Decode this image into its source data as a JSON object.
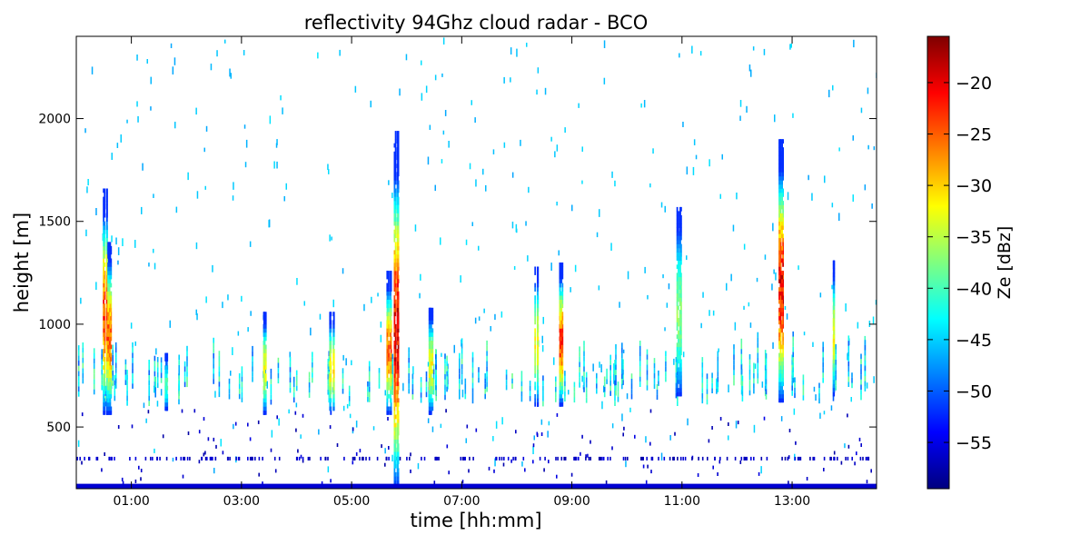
{
  "chart_data": {
    "type": "heatmap",
    "title": "reflectivity 94Ghz cloud radar - BCO",
    "xlabel": "time [hh:mm]",
    "ylabel": "height [m]",
    "xlim": [
      "00:00",
      "14:32"
    ],
    "ylim": [
      200,
      2400
    ],
    "x_ticks": [
      "01:00",
      "03:00",
      "05:00",
      "07:00",
      "09:00",
      "11:00",
      "13:00"
    ],
    "y_ticks": [
      500,
      1000,
      1500,
      2000
    ],
    "colorbar": {
      "label": "Ze [dBz]",
      "range": [
        -59.5,
        -15.5
      ],
      "ticks": [
        -55,
        -50,
        -45,
        -40,
        -35,
        -30,
        -25,
        -20
      ],
      "tick_labels": [
        "−55",
        "−50",
        "−45",
        "−40",
        "−35",
        "−30",
        "−25",
        "−20"
      ],
      "colormap": "jet"
    },
    "surface_clutter_height": 215,
    "cloud_columns": [
      {
        "time": "00:31",
        "base": 560,
        "top": 1660,
        "peak_dbz": -20
      },
      {
        "time": "00:36",
        "base": 560,
        "top": 1400,
        "peak_dbz": -22
      },
      {
        "time": "01:38",
        "base": 580,
        "top": 850,
        "peak_dbz": -38
      },
      {
        "time": "03:25",
        "base": 560,
        "top": 1050,
        "peak_dbz": -30
      },
      {
        "time": "04:38",
        "base": 560,
        "top": 1050,
        "peak_dbz": -28
      },
      {
        "time": "05:40",
        "base": 560,
        "top": 1250,
        "peak_dbz": -22
      },
      {
        "time": "05:48",
        "base": 200,
        "top": 1930,
        "peak_dbz": -16
      },
      {
        "time": "06:25",
        "base": 560,
        "top": 1080,
        "peak_dbz": -30
      },
      {
        "time": "08:20",
        "base": 600,
        "top": 1280,
        "peak_dbz": -30
      },
      {
        "time": "08:48",
        "base": 600,
        "top": 1300,
        "peak_dbz": -20
      },
      {
        "time": "10:56",
        "base": 650,
        "top": 1560,
        "peak_dbz": -35
      },
      {
        "time": "12:47",
        "base": 620,
        "top": 1900,
        "peak_dbz": -17
      },
      {
        "time": "13:46",
        "base": 650,
        "top": 1300,
        "peak_dbz": -30
      }
    ]
  }
}
